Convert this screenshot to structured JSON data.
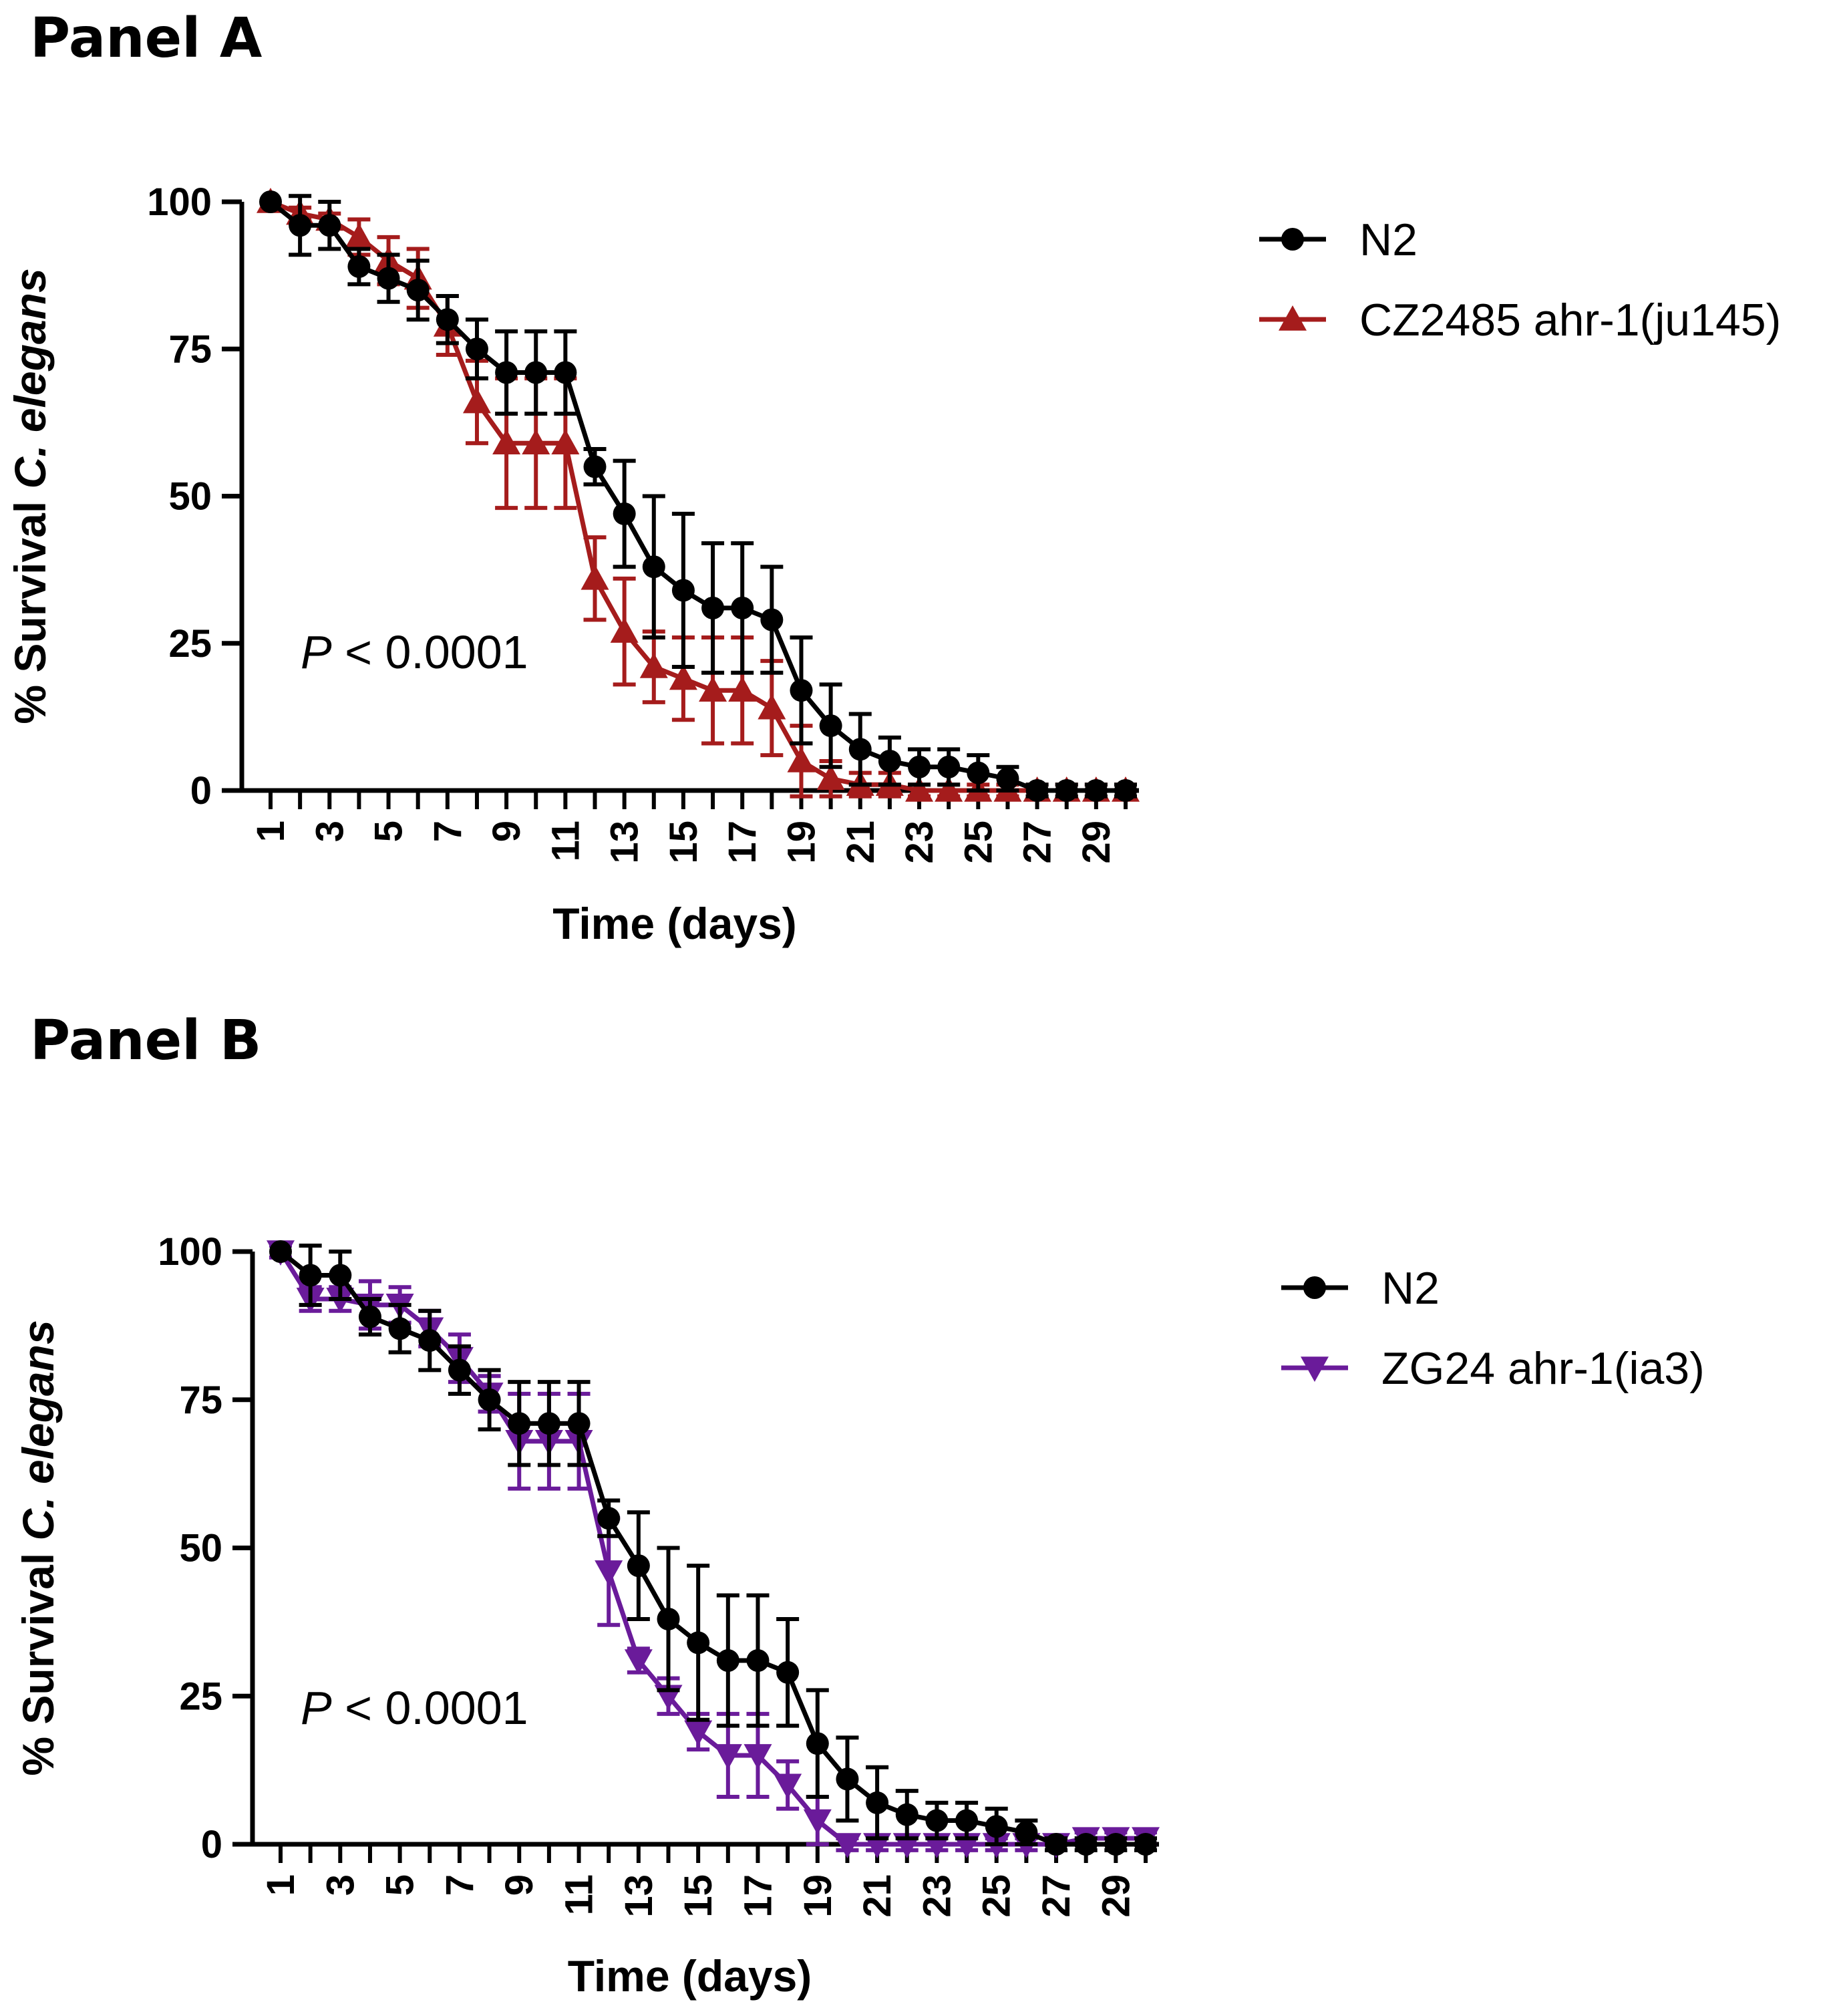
{
  "panels": {
    "a": {
      "title": "Panel A"
    },
    "b": {
      "title": "Panel B"
    }
  },
  "chart_data": [
    {
      "type": "line",
      "panel": "Panel A",
      "xlabel": "Time (days)",
      "ylabel_prefix": "% Survival ",
      "ylabel_species": "C. elegans",
      "xlim": [
        1,
        30
      ],
      "ylim": [
        0,
        100
      ],
      "yticks": [
        0,
        25,
        50,
        75,
        100
      ],
      "xticks": [
        1,
        3,
        5,
        7,
        9,
        11,
        13,
        15,
        17,
        19,
        21,
        23,
        25,
        27,
        29
      ],
      "annotation": {
        "p_letter": "P",
        "p_rest": " < 0.0001"
      },
      "x": [
        1,
        2,
        3,
        4,
        5,
        6,
        7,
        8,
        9,
        10,
        11,
        12,
        13,
        14,
        15,
        16,
        17,
        18,
        19,
        20,
        21,
        22,
        23,
        24,
        25,
        26,
        27,
        28,
        29,
        30
      ],
      "series": [
        {
          "name": "CZ2485 ahr-1(ju145)",
          "color": "#a51c1c",
          "marker": "triangle-up",
          "values": [
            100,
            98,
            97,
            94,
            90,
            87,
            79,
            66,
            59,
            59,
            59,
            36,
            27,
            21,
            19,
            17,
            17,
            14,
            5,
            2,
            1,
            1,
            0,
            0,
            0,
            0,
            0,
            0,
            0,
            0
          ],
          "errors": [
            0,
            1,
            1,
            3,
            4,
            5,
            5,
            7,
            11,
            11,
            11,
            7,
            9,
            6,
            7,
            9,
            9,
            8,
            6,
            3,
            2,
            2,
            1,
            1,
            1,
            1,
            1,
            1,
            1,
            1
          ]
        },
        {
          "name": "N2",
          "color": "#000000",
          "marker": "circle",
          "values": [
            100,
            96,
            96,
            89,
            87,
            85,
            80,
            75,
            71,
            71,
            71,
            55,
            47,
            38,
            34,
            31,
            31,
            29,
            17,
            11,
            7,
            5,
            4,
            4,
            3,
            2,
            0,
            0,
            0,
            0
          ],
          "errors": [
            0,
            5,
            4,
            3,
            4,
            5,
            4,
            5,
            7,
            7,
            7,
            3,
            9,
            12,
            13,
            11,
            11,
            9,
            9,
            7,
            6,
            4,
            3,
            3,
            3,
            2,
            1,
            1,
            1,
            1
          ]
        }
      ]
    },
    {
      "type": "line",
      "panel": "Panel B",
      "xlabel": "Time (days)",
      "ylabel_prefix": "% Survival ",
      "ylabel_species": "C. elegans",
      "xlim": [
        1,
        30
      ],
      "ylim": [
        0,
        100
      ],
      "yticks": [
        0,
        25,
        50,
        75,
        100
      ],
      "xticks": [
        1,
        3,
        5,
        7,
        9,
        11,
        13,
        15,
        17,
        19,
        21,
        23,
        25,
        27,
        29
      ],
      "annotation": {
        "p_letter": "P",
        "p_rest": " < 0.0001"
      },
      "x": [
        1,
        2,
        3,
        4,
        5,
        6,
        7,
        8,
        9,
        10,
        11,
        12,
        13,
        14,
        15,
        16,
        17,
        18,
        19,
        20,
        21,
        22,
        23,
        24,
        25,
        26,
        27,
        28,
        29,
        30
      ],
      "series": [
        {
          "name": "ZG24 ahr-1(ia3)",
          "color": "#6a1b9a",
          "marker": "triangle-down",
          "values": [
            100,
            92,
            92,
            91,
            91,
            87,
            82,
            76,
            68,
            68,
            68,
            46,
            31,
            25,
            19,
            15,
            15,
            10,
            4,
            0,
            0,
            0,
            0,
            0,
            0,
            0,
            0,
            1,
            1,
            1
          ],
          "errors": [
            1,
            2,
            2,
            4,
            3,
            3,
            4,
            3,
            8,
            8,
            8,
            9,
            2,
            3,
            3,
            7,
            7,
            4,
            4,
            1,
            1,
            1,
            1,
            1,
            1,
            1,
            1,
            1,
            1,
            1
          ]
        },
        {
          "name": "N2",
          "color": "#000000",
          "marker": "circle",
          "values": [
            100,
            96,
            96,
            89,
            87,
            85,
            80,
            75,
            71,
            71,
            71,
            55,
            47,
            38,
            34,
            31,
            31,
            29,
            17,
            11,
            7,
            5,
            4,
            4,
            3,
            2,
            0,
            0,
            0,
            0
          ],
          "errors": [
            0,
            5,
            4,
            3,
            4,
            5,
            4,
            5,
            7,
            7,
            7,
            3,
            9,
            12,
            13,
            11,
            11,
            9,
            9,
            7,
            6,
            4,
            3,
            3,
            3,
            2,
            1,
            1,
            1,
            1
          ]
        }
      ]
    }
  ]
}
